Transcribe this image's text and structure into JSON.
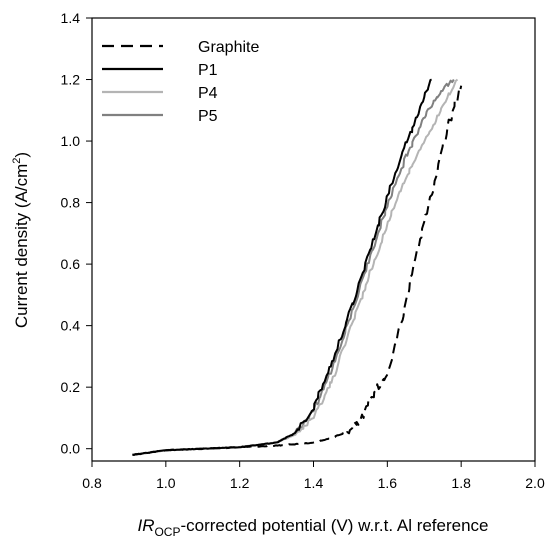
{
  "chart_data": {
    "type": "line",
    "xlabel": {
      "italic": "IR",
      "subscript": "OCP",
      "rest": "-corrected potential (V) w.r.t. Al reference"
    },
    "ylabel": {
      "main": "Current density (A/cm",
      "superscript": "2",
      "tail": ")"
    },
    "xlim": [
      0.8,
      2.0
    ],
    "ylim": [
      -0.04,
      1.4
    ],
    "xticks": [
      0.8,
      1.0,
      1.2,
      1.4,
      1.6,
      1.8,
      2.0
    ],
    "yticks": [
      0.0,
      0.2,
      0.4,
      0.6,
      0.8,
      1.0,
      1.2,
      1.4
    ],
    "xtick_labels": [
      "0.8",
      "1.0",
      "1.2",
      "1.4",
      "1.6",
      "1.8",
      "2.0"
    ],
    "ytick_labels": [
      "0.0",
      "0.2",
      "0.4",
      "0.6",
      "0.8",
      "1.0",
      "1.2",
      "1.4"
    ],
    "grid": false,
    "legend_position": "top-left",
    "series": [
      {
        "name": "Graphite",
        "color": "#000000",
        "dash": true,
        "noise": 0.012,
        "x": [
          0.91,
          1.0,
          1.1,
          1.2,
          1.3,
          1.4,
          1.45,
          1.5,
          1.53,
          1.55,
          1.57,
          1.6,
          1.62,
          1.64,
          1.66,
          1.68,
          1.7,
          1.72,
          1.74,
          1.76,
          1.78,
          1.8
        ],
        "y": [
          -0.02,
          -0.005,
          0.0,
          0.005,
          0.01,
          0.02,
          0.035,
          0.06,
          0.1,
          0.15,
          0.19,
          0.25,
          0.33,
          0.42,
          0.53,
          0.63,
          0.73,
          0.83,
          0.93,
          1.03,
          1.11,
          1.18
        ]
      },
      {
        "name": "P1",
        "color": "#000000",
        "dash": false,
        "noise": 0.008,
        "x": [
          0.91,
          1.0,
          1.1,
          1.2,
          1.3,
          1.35,
          1.4,
          1.45,
          1.5,
          1.55,
          1.6,
          1.65,
          1.68,
          1.7,
          1.72
        ],
        "y": [
          -0.02,
          -0.005,
          0.0,
          0.005,
          0.02,
          0.05,
          0.13,
          0.28,
          0.45,
          0.63,
          0.82,
          0.99,
          1.08,
          1.15,
          1.2
        ]
      },
      {
        "name": "P4",
        "color": "#b4b4b4",
        "dash": false,
        "noise": 0.008,
        "x": [
          0.91,
          1.0,
          1.1,
          1.2,
          1.3,
          1.35,
          1.4,
          1.45,
          1.5,
          1.55,
          1.6,
          1.65,
          1.7,
          1.74,
          1.77,
          1.79
        ],
        "y": [
          -0.02,
          -0.005,
          0.0,
          0.005,
          0.02,
          0.045,
          0.1,
          0.22,
          0.39,
          0.56,
          0.73,
          0.88,
          1.0,
          1.09,
          1.16,
          1.2
        ]
      },
      {
        "name": "P5",
        "color": "#808080",
        "dash": false,
        "noise": 0.008,
        "x": [
          0.91,
          1.0,
          1.1,
          1.2,
          1.3,
          1.35,
          1.4,
          1.45,
          1.5,
          1.55,
          1.6,
          1.65,
          1.7,
          1.73,
          1.76,
          1.78
        ],
        "y": [
          -0.02,
          -0.005,
          0.0,
          0.005,
          0.02,
          0.05,
          0.12,
          0.26,
          0.43,
          0.61,
          0.79,
          0.95,
          1.08,
          1.14,
          1.18,
          1.2
        ]
      }
    ]
  }
}
